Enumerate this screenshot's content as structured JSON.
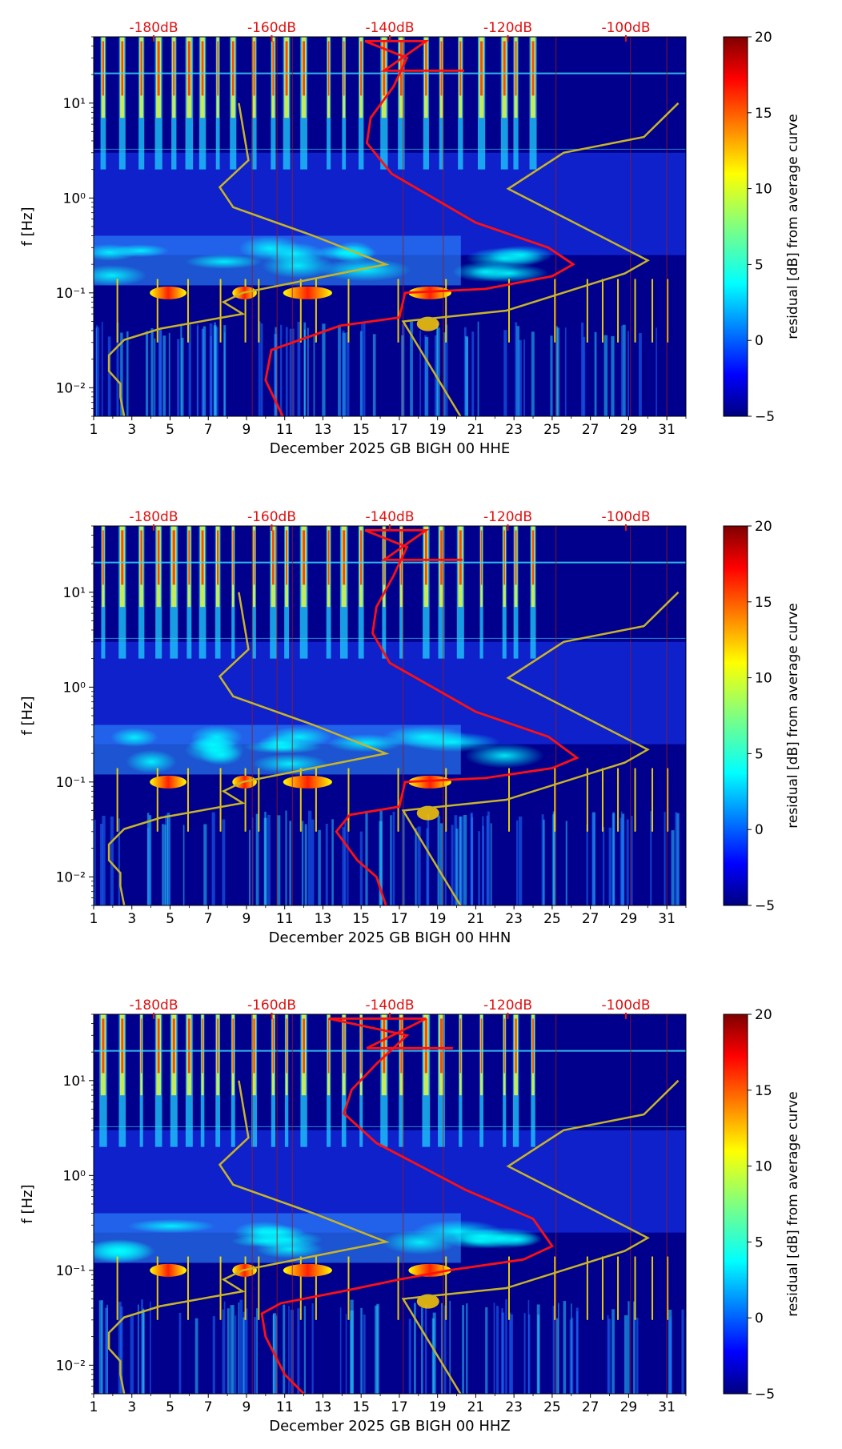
{
  "chart_data": [
    {
      "type": "heatmap",
      "xlabel": "December 2025 GB BIGH 00 HHE",
      "ylabel": "f [Hz]",
      "x_tick_labels": [
        "1",
        "3",
        "5",
        "7",
        "9",
        "11",
        "13",
        "15",
        "17",
        "19",
        "21",
        "23",
        "25",
        "27",
        "29",
        "31"
      ],
      "xlim": [
        1,
        32
      ],
      "y_scale": "log",
      "ylim": [
        0.005,
        50
      ],
      "y_tick_labels": [
        "10⁻²",
        "10⁻¹",
        "10⁰",
        "10¹"
      ],
      "top_db_labels": [
        "-180dB",
        "-160dB",
        "-140dB",
        "-120dB",
        "-100dB"
      ],
      "colorbar": {
        "label": "residual [dB] from average curve",
        "min": -5,
        "max": 20,
        "tick_labels": [
          "−5",
          "0",
          "5",
          "10",
          "15",
          "20"
        ]
      },
      "noise_models": {
        "low_model_day": [
          [
            2.6,
            0.005
          ],
          [
            2.4,
            0.008
          ],
          [
            2.4,
            0.011
          ],
          [
            1.8,
            0.015
          ],
          [
            1.8,
            0.022
          ],
          [
            2.6,
            0.032
          ],
          [
            4.5,
            0.042
          ],
          [
            8.8,
            0.06
          ],
          [
            7.8,
            0.08
          ],
          [
            8.8,
            0.1
          ],
          [
            16.3,
            0.2
          ],
          [
            12.5,
            0.4
          ],
          [
            8.3,
            0.8
          ],
          [
            7.6,
            1.3
          ],
          [
            9.1,
            2.5
          ],
          [
            8.6,
            10
          ]
        ],
        "high_model_day": [
          [
            20.2,
            0.005
          ],
          [
            17.2,
            0.05
          ],
          [
            22.6,
            0.065
          ],
          [
            28.8,
            0.16
          ],
          [
            30.0,
            0.22
          ],
          [
            22.7,
            1.25
          ],
          [
            25.6,
            3.0
          ],
          [
            29.8,
            4.4
          ],
          [
            31.6,
            10
          ]
        ],
        "average_curve_day": [
          [
            10.9,
            0.005
          ],
          [
            10.0,
            0.012
          ],
          [
            10.3,
            0.025
          ],
          [
            13.9,
            0.045
          ],
          [
            17.0,
            0.055
          ],
          [
            17.3,
            0.1
          ],
          [
            21.5,
            0.11
          ],
          [
            25.0,
            0.15
          ],
          [
            26.1,
            0.2
          ],
          [
            24.8,
            0.3
          ],
          [
            21.0,
            0.55
          ],
          [
            16.6,
            1.8
          ],
          [
            15.3,
            3.8
          ],
          [
            15.5,
            7
          ],
          [
            16.7,
            15
          ],
          [
            17.4,
            30
          ],
          [
            15.2,
            45
          ],
          [
            18.4,
            45
          ],
          [
            16.2,
            22
          ],
          [
            18.4,
            22
          ],
          [
            20.4,
            22
          ]
        ]
      }
    },
    {
      "type": "heatmap",
      "xlabel": "December 2025 GB BIGH 00 HHN",
      "ylabel": "f [Hz]",
      "x_tick_labels": [
        "1",
        "3",
        "5",
        "7",
        "9",
        "11",
        "13",
        "15",
        "17",
        "19",
        "21",
        "23",
        "25",
        "27",
        "29",
        "31"
      ],
      "xlim": [
        1,
        32
      ],
      "y_scale": "log",
      "ylim": [
        0.005,
        50
      ],
      "y_tick_labels": [
        "10⁻²",
        "10⁻¹",
        "10⁰",
        "10¹"
      ],
      "top_db_labels": [
        "-180dB",
        "-160dB",
        "-140dB",
        "-120dB",
        "-100dB"
      ],
      "colorbar": {
        "label": "residual [dB] from average curve",
        "min": -5,
        "max": 20,
        "tick_labels": [
          "−5",
          "0",
          "5",
          "10",
          "15",
          "20"
        ]
      },
      "noise_models": {
        "low_model_day": [
          [
            2.6,
            0.005
          ],
          [
            2.4,
            0.008
          ],
          [
            2.4,
            0.011
          ],
          [
            1.8,
            0.015
          ],
          [
            1.8,
            0.022
          ],
          [
            2.6,
            0.032
          ],
          [
            4.5,
            0.042
          ],
          [
            8.8,
            0.06
          ],
          [
            7.8,
            0.08
          ],
          [
            8.8,
            0.1
          ],
          [
            16.3,
            0.2
          ],
          [
            12.5,
            0.4
          ],
          [
            8.3,
            0.8
          ],
          [
            7.6,
            1.3
          ],
          [
            9.1,
            2.5
          ],
          [
            8.6,
            10
          ]
        ],
        "high_model_day": [
          [
            20.2,
            0.005
          ],
          [
            17.2,
            0.05
          ],
          [
            22.6,
            0.065
          ],
          [
            28.8,
            0.16
          ],
          [
            30.0,
            0.22
          ],
          [
            22.7,
            1.25
          ],
          [
            25.6,
            3.0
          ],
          [
            29.8,
            4.4
          ],
          [
            31.6,
            10
          ]
        ],
        "average_curve_day": [
          [
            16.3,
            0.005
          ],
          [
            15.8,
            0.01
          ],
          [
            14.8,
            0.015
          ],
          [
            13.7,
            0.03
          ],
          [
            14.4,
            0.045
          ],
          [
            17.0,
            0.055
          ],
          [
            17.3,
            0.1
          ],
          [
            21.5,
            0.11
          ],
          [
            25.0,
            0.14
          ],
          [
            26.3,
            0.18
          ],
          [
            24.8,
            0.3
          ],
          [
            21.0,
            0.55
          ],
          [
            16.5,
            1.8
          ],
          [
            15.6,
            3.7
          ],
          [
            15.8,
            7
          ],
          [
            16.7,
            15
          ],
          [
            17.4,
            30
          ],
          [
            15.2,
            45
          ],
          [
            18.4,
            45
          ],
          [
            16.2,
            22
          ],
          [
            18.4,
            22
          ],
          [
            20.3,
            22
          ]
        ]
      }
    },
    {
      "type": "heatmap",
      "xlabel": "December 2025 GB BIGH 00 HHZ",
      "ylabel": "f [Hz]",
      "x_tick_labels": [
        "1",
        "3",
        "5",
        "7",
        "9",
        "11",
        "13",
        "15",
        "17",
        "19",
        "21",
        "23",
        "25",
        "27",
        "29",
        "31"
      ],
      "xlim": [
        1,
        32
      ],
      "y_scale": "log",
      "ylim": [
        0.005,
        50
      ],
      "y_tick_labels": [
        "10⁻²",
        "10⁻¹",
        "10⁰",
        "10¹"
      ],
      "top_db_labels": [
        "-180dB",
        "-160dB",
        "-140dB",
        "-120dB",
        "-100dB"
      ],
      "colorbar": {
        "label": "residual [dB] from average curve",
        "min": -5,
        "max": 20,
        "tick_labels": [
          "−5",
          "0",
          "5",
          "10",
          "15",
          "20"
        ]
      },
      "noise_models": {
        "low_model_day": [
          [
            2.6,
            0.005
          ],
          [
            2.4,
            0.008
          ],
          [
            2.4,
            0.011
          ],
          [
            1.8,
            0.015
          ],
          [
            1.8,
            0.022
          ],
          [
            2.6,
            0.032
          ],
          [
            4.5,
            0.042
          ],
          [
            8.8,
            0.06
          ],
          [
            7.8,
            0.08
          ],
          [
            8.8,
            0.1
          ],
          [
            16.3,
            0.2
          ],
          [
            12.5,
            0.4
          ],
          [
            8.3,
            0.8
          ],
          [
            7.6,
            1.3
          ],
          [
            9.1,
            2.5
          ],
          [
            8.6,
            10
          ]
        ],
        "high_model_day": [
          [
            20.2,
            0.005
          ],
          [
            17.2,
            0.05
          ],
          [
            22.6,
            0.065
          ],
          [
            28.8,
            0.16
          ],
          [
            30.0,
            0.22
          ],
          [
            22.7,
            1.25
          ],
          [
            25.6,
            3.0
          ],
          [
            29.8,
            4.4
          ],
          [
            31.6,
            10
          ]
        ],
        "average_curve_day": [
          [
            12.0,
            0.005
          ],
          [
            11.0,
            0.008
          ],
          [
            10.0,
            0.02
          ],
          [
            9.8,
            0.035
          ],
          [
            10.8,
            0.045
          ],
          [
            14.0,
            0.06
          ],
          [
            17.0,
            0.08
          ],
          [
            19.6,
            0.1
          ],
          [
            23.5,
            0.13
          ],
          [
            25.0,
            0.18
          ],
          [
            24.0,
            0.35
          ],
          [
            20.5,
            0.7
          ],
          [
            15.8,
            2.2
          ],
          [
            14.1,
            4.5
          ],
          [
            14.5,
            8
          ],
          [
            15.8,
            15
          ],
          [
            17.4,
            30
          ],
          [
            13.3,
            45
          ],
          [
            18.4,
            45
          ],
          [
            15.3,
            22
          ],
          [
            18.4,
            22
          ],
          [
            19.8,
            22
          ]
        ]
      }
    }
  ]
}
